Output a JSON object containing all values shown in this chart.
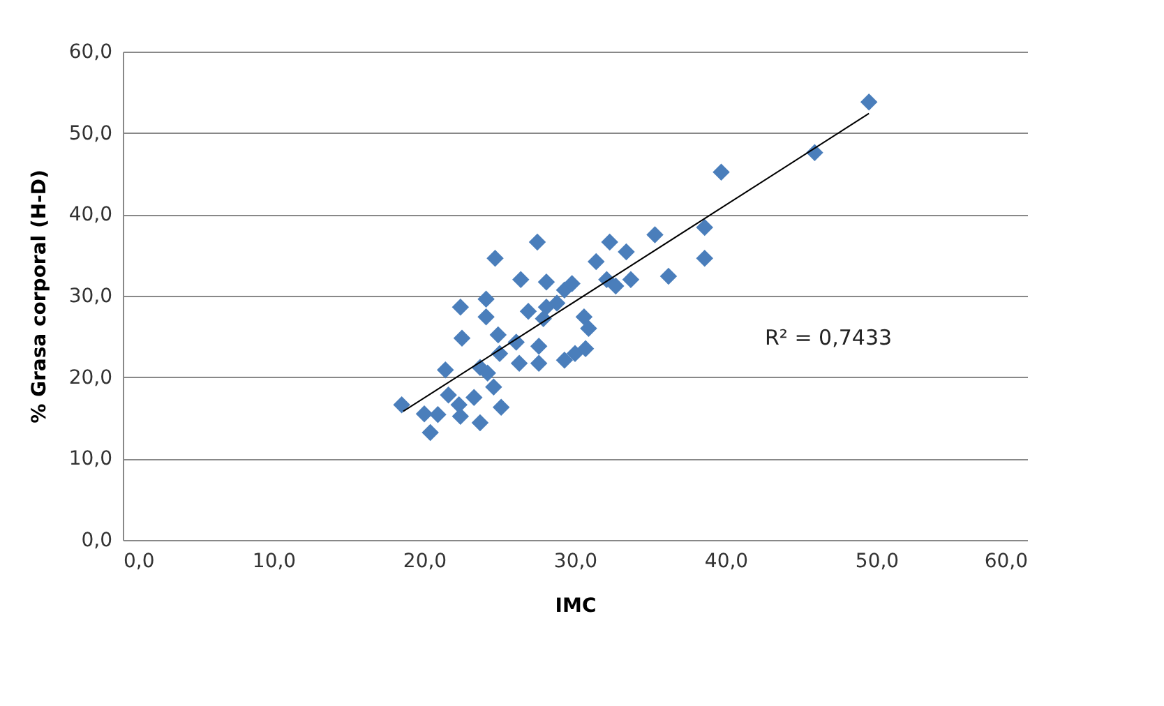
{
  "chart_data": {
    "type": "scatter",
    "xlabel": "IMC",
    "ylabel": "% Grasa corporal (H-D)",
    "xlim": [
      0,
      60
    ],
    "ylim": [
      0,
      60
    ],
    "xticks": [
      {
        "value": 0,
        "label": "0,0"
      },
      {
        "value": 10,
        "label": "10,0"
      },
      {
        "value": 20,
        "label": "20,0"
      },
      {
        "value": 30,
        "label": "30,0"
      },
      {
        "value": 40,
        "label": "40,0"
      },
      {
        "value": 50,
        "label": "50,0"
      },
      {
        "value": 60,
        "label": "60,0"
      }
    ],
    "yticks": [
      {
        "value": 0,
        "label": "0,0"
      },
      {
        "value": 10,
        "label": "10,0"
      },
      {
        "value": 20,
        "label": "20,0"
      },
      {
        "value": 30,
        "label": "30,0"
      },
      {
        "value": 40,
        "label": "40,0"
      },
      {
        "value": 50,
        "label": "50,0"
      },
      {
        "value": 60,
        "label": "60,0"
      }
    ],
    "grid": "y",
    "series": [
      {
        "marker": "diamond",
        "color": "#4a7ebb",
        "x": [
          18.5,
          20.0,
          20.4,
          20.9,
          21.4,
          21.6,
          22.3,
          22.4,
          22.4,
          22.5,
          23.3,
          23.7,
          24.1,
          24.1,
          23.7,
          24.2,
          24.6,
          24.9,
          24.7,
          25.1,
          25.0,
          26.3,
          26.1,
          26.4,
          26.9,
          27.5,
          27.6,
          27.6,
          28.1,
          28.1,
          28.8,
          27.9,
          29.3,
          29.3,
          29.8,
          30.0,
          30.6,
          30.9,
          30.7,
          31.4,
          32.3,
          32.1,
          32.7,
          33.4,
          33.7,
          35.3,
          36.2,
          38.6,
          38.6,
          39.7,
          45.9,
          49.5
        ],
        "values": [
          16.6,
          15.5,
          13.2,
          15.4,
          20.9,
          17.8,
          16.6,
          15.2,
          28.6,
          24.8,
          17.5,
          14.4,
          29.6,
          27.4,
          21.2,
          20.5,
          18.8,
          25.2,
          34.6,
          16.3,
          22.9,
          21.7,
          24.3,
          32.0,
          28.1,
          36.6,
          23.8,
          21.7,
          31.7,
          28.6,
          29.1,
          27.2,
          22.1,
          30.7,
          31.5,
          22.9,
          27.4,
          26.0,
          23.5,
          34.2,
          36.6,
          32.0,
          31.2,
          35.4,
          32.0,
          37.5,
          32.4,
          38.4,
          34.6,
          45.2,
          47.6,
          53.8
        ]
      },
      {
        "type": "line",
        "color": "#000000",
        "x": [
          18.6,
          49.5
        ],
        "values": [
          15.8,
          52.4
        ]
      }
    ],
    "annotations": [
      "R² = 0,7433"
    ]
  }
}
